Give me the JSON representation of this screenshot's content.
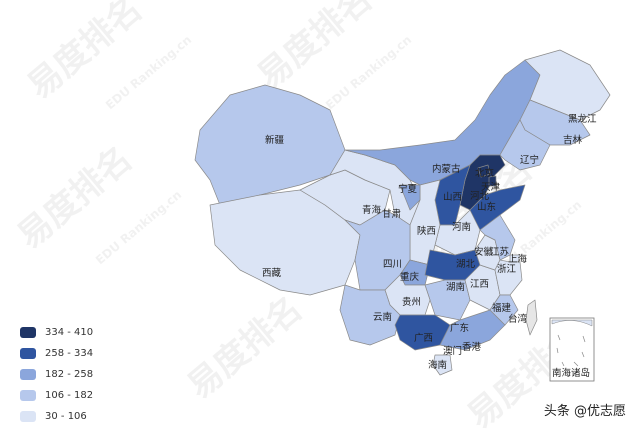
{
  "watermark": {
    "brand": "易度排名",
    "sub": "EDU Ranking.cn"
  },
  "legend": [
    {
      "label": "334 - 410",
      "color": "#1f3566"
    },
    {
      "label": "258 - 334",
      "color": "#2f55a0"
    },
    {
      "label": "182 - 258",
      "color": "#8ba6dc"
    },
    {
      "label": "106 - 182",
      "color": "#b6c8ec"
    },
    {
      "label": "30 - 106",
      "color": "#dbe4f5"
    }
  ],
  "no_data_color": "#e6e6e6",
  "provinces": {
    "xinjiang": {
      "name": "新疆",
      "bin": 3
    },
    "xizang": {
      "name": "西藏",
      "bin": 4
    },
    "qinghai": {
      "name": "青海",
      "bin": 4
    },
    "gansu": {
      "name": "甘肃",
      "bin": 4
    },
    "neimenggu": {
      "name": "内蒙古",
      "bin": 2
    },
    "heilongjiang": {
      "name": "黑龙江",
      "bin": 4
    },
    "jilin": {
      "name": "吉林",
      "bin": 3
    },
    "liaoning": {
      "name": "辽宁",
      "bin": 3
    },
    "hebei": {
      "name": "河北",
      "bin": 0
    },
    "beijing": {
      "name": "北京",
      "bin": 0
    },
    "tianjin": {
      "name": "天津",
      "bin": 0
    },
    "shanxi": {
      "name": "山西",
      "bin": 1
    },
    "shandong": {
      "name": "山东",
      "bin": 1
    },
    "henan": {
      "name": "河南",
      "bin": 4
    },
    "shaanxi": {
      "name": "陕西",
      "bin": 4
    },
    "ningxia": {
      "name": "宁夏",
      "bin": 2
    },
    "sichuan": {
      "name": "四川",
      "bin": 3
    },
    "chongqing": {
      "name": "重庆",
      "bin": 2
    },
    "hubei": {
      "name": "湖北",
      "bin": 1
    },
    "hunan": {
      "name": "湖南",
      "bin": 3
    },
    "guizhou": {
      "name": "贵州",
      "bin": 4
    },
    "yunnan": {
      "name": "云南",
      "bin": 3
    },
    "guangxi": {
      "name": "广西",
      "bin": 1
    },
    "guangdong": {
      "name": "广东",
      "bin": 2
    },
    "hainan": {
      "name": "海南",
      "bin": 4
    },
    "jiangxi": {
      "name": "江西",
      "bin": 4
    },
    "anhui": {
      "name": "安徽",
      "bin": 4
    },
    "jiangsu": {
      "name": "江苏",
      "bin": 3
    },
    "shanghai": {
      "name": "上海",
      "bin": 4
    },
    "zhejiang": {
      "name": "浙江",
      "bin": 4
    },
    "fujian": {
      "name": "福建",
      "bin": 3
    },
    "taiwan": {
      "name": "台湾",
      "bin": null
    },
    "xianggang": {
      "name": "香港",
      "bin": null
    },
    "aomen": {
      "name": "澳门",
      "bin": null
    }
  },
  "inset_label": "南海诸岛",
  "footer": "头条 @优志愿"
}
